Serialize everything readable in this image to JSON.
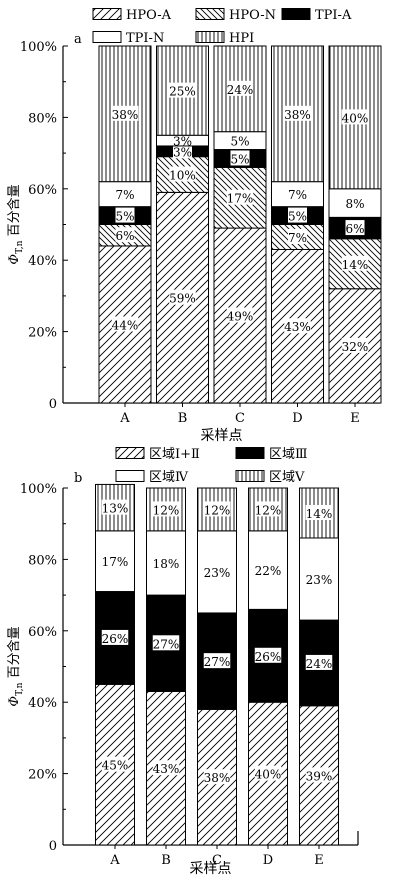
{
  "chart_data": [
    {
      "type": "bar",
      "stacked": true,
      "panel_label": "a",
      "categories": [
        "A",
        "B",
        "C",
        "D",
        "E"
      ],
      "xlabel": "采样点",
      "ylabel_main": "Φ",
      "ylabel_sub": "T,n",
      "ylabel_rest": " 百分含量",
      "ylim": [
        0,
        100
      ],
      "yticks": [
        "0",
        "20%",
        "40%",
        "60%",
        "80%",
        "100%"
      ],
      "legend_position": "top",
      "series": [
        {
          "name": "HPO-A",
          "pattern": "diag-fwd",
          "values": [
            44,
            59,
            49,
            43,
            32
          ],
          "labels": [
            "44%",
            "59%",
            "49%",
            "43%",
            "32%"
          ]
        },
        {
          "name": "HPO-N",
          "pattern": "diag-back",
          "values": [
            6,
            10,
            17,
            7,
            14
          ],
          "labels": [
            "6%",
            "10%",
            "17%",
            "7%",
            "14%"
          ]
        },
        {
          "name": "TPI-A",
          "pattern": "solid",
          "values": [
            5,
            3,
            5,
            5,
            6
          ],
          "labels": [
            "5%",
            "3%",
            "5%",
            "5%",
            "6%"
          ]
        },
        {
          "name": "TPI-N",
          "pattern": "white",
          "values": [
            7,
            3,
            5,
            7,
            8
          ],
          "labels": [
            "7%",
            "3%",
            "5%",
            "7%",
            "8%"
          ]
        },
        {
          "name": "HPI",
          "pattern": "vertical",
          "values": [
            38,
            25,
            24,
            38,
            40
          ],
          "labels": [
            "38%",
            "25%",
            "24%",
            "38%",
            "40%"
          ]
        }
      ]
    },
    {
      "type": "bar",
      "stacked": true,
      "panel_label": "b",
      "categories": [
        "A",
        "B",
        "C",
        "D",
        "E"
      ],
      "xlabel": "采样点",
      "ylabel_main": "Φ",
      "ylabel_sub": "T,n",
      "ylabel_rest": " 百分含量",
      "ylim": [
        0,
        100
      ],
      "yticks": [
        "0",
        "20%",
        "40%",
        "60%",
        "80%",
        "100%"
      ],
      "legend_position": "top",
      "series": [
        {
          "name": "区域Ⅰ+Ⅱ",
          "pattern": "diag-fwd",
          "values": [
            45,
            43,
            38,
            40,
            39
          ],
          "labels": [
            "45%",
            "43%",
            "38%",
            "40%",
            "39%"
          ]
        },
        {
          "name": "区域Ⅲ",
          "pattern": "solid",
          "values": [
            26,
            27,
            27,
            26,
            24
          ],
          "labels": [
            "26%",
            "27%",
            "27%",
            "26%",
            "24%"
          ]
        },
        {
          "name": "区域Ⅳ",
          "pattern": "white",
          "values": [
            17,
            18,
            23,
            22,
            23
          ],
          "labels": [
            "17%",
            "18%",
            "23%",
            "22%",
            "23%"
          ]
        },
        {
          "name": "区域Ⅴ",
          "pattern": "vertical",
          "values": [
            13,
            12,
            12,
            12,
            14
          ],
          "labels": [
            "13%",
            "12%",
            "12%",
            "12%",
            "14%"
          ]
        }
      ]
    }
  ]
}
